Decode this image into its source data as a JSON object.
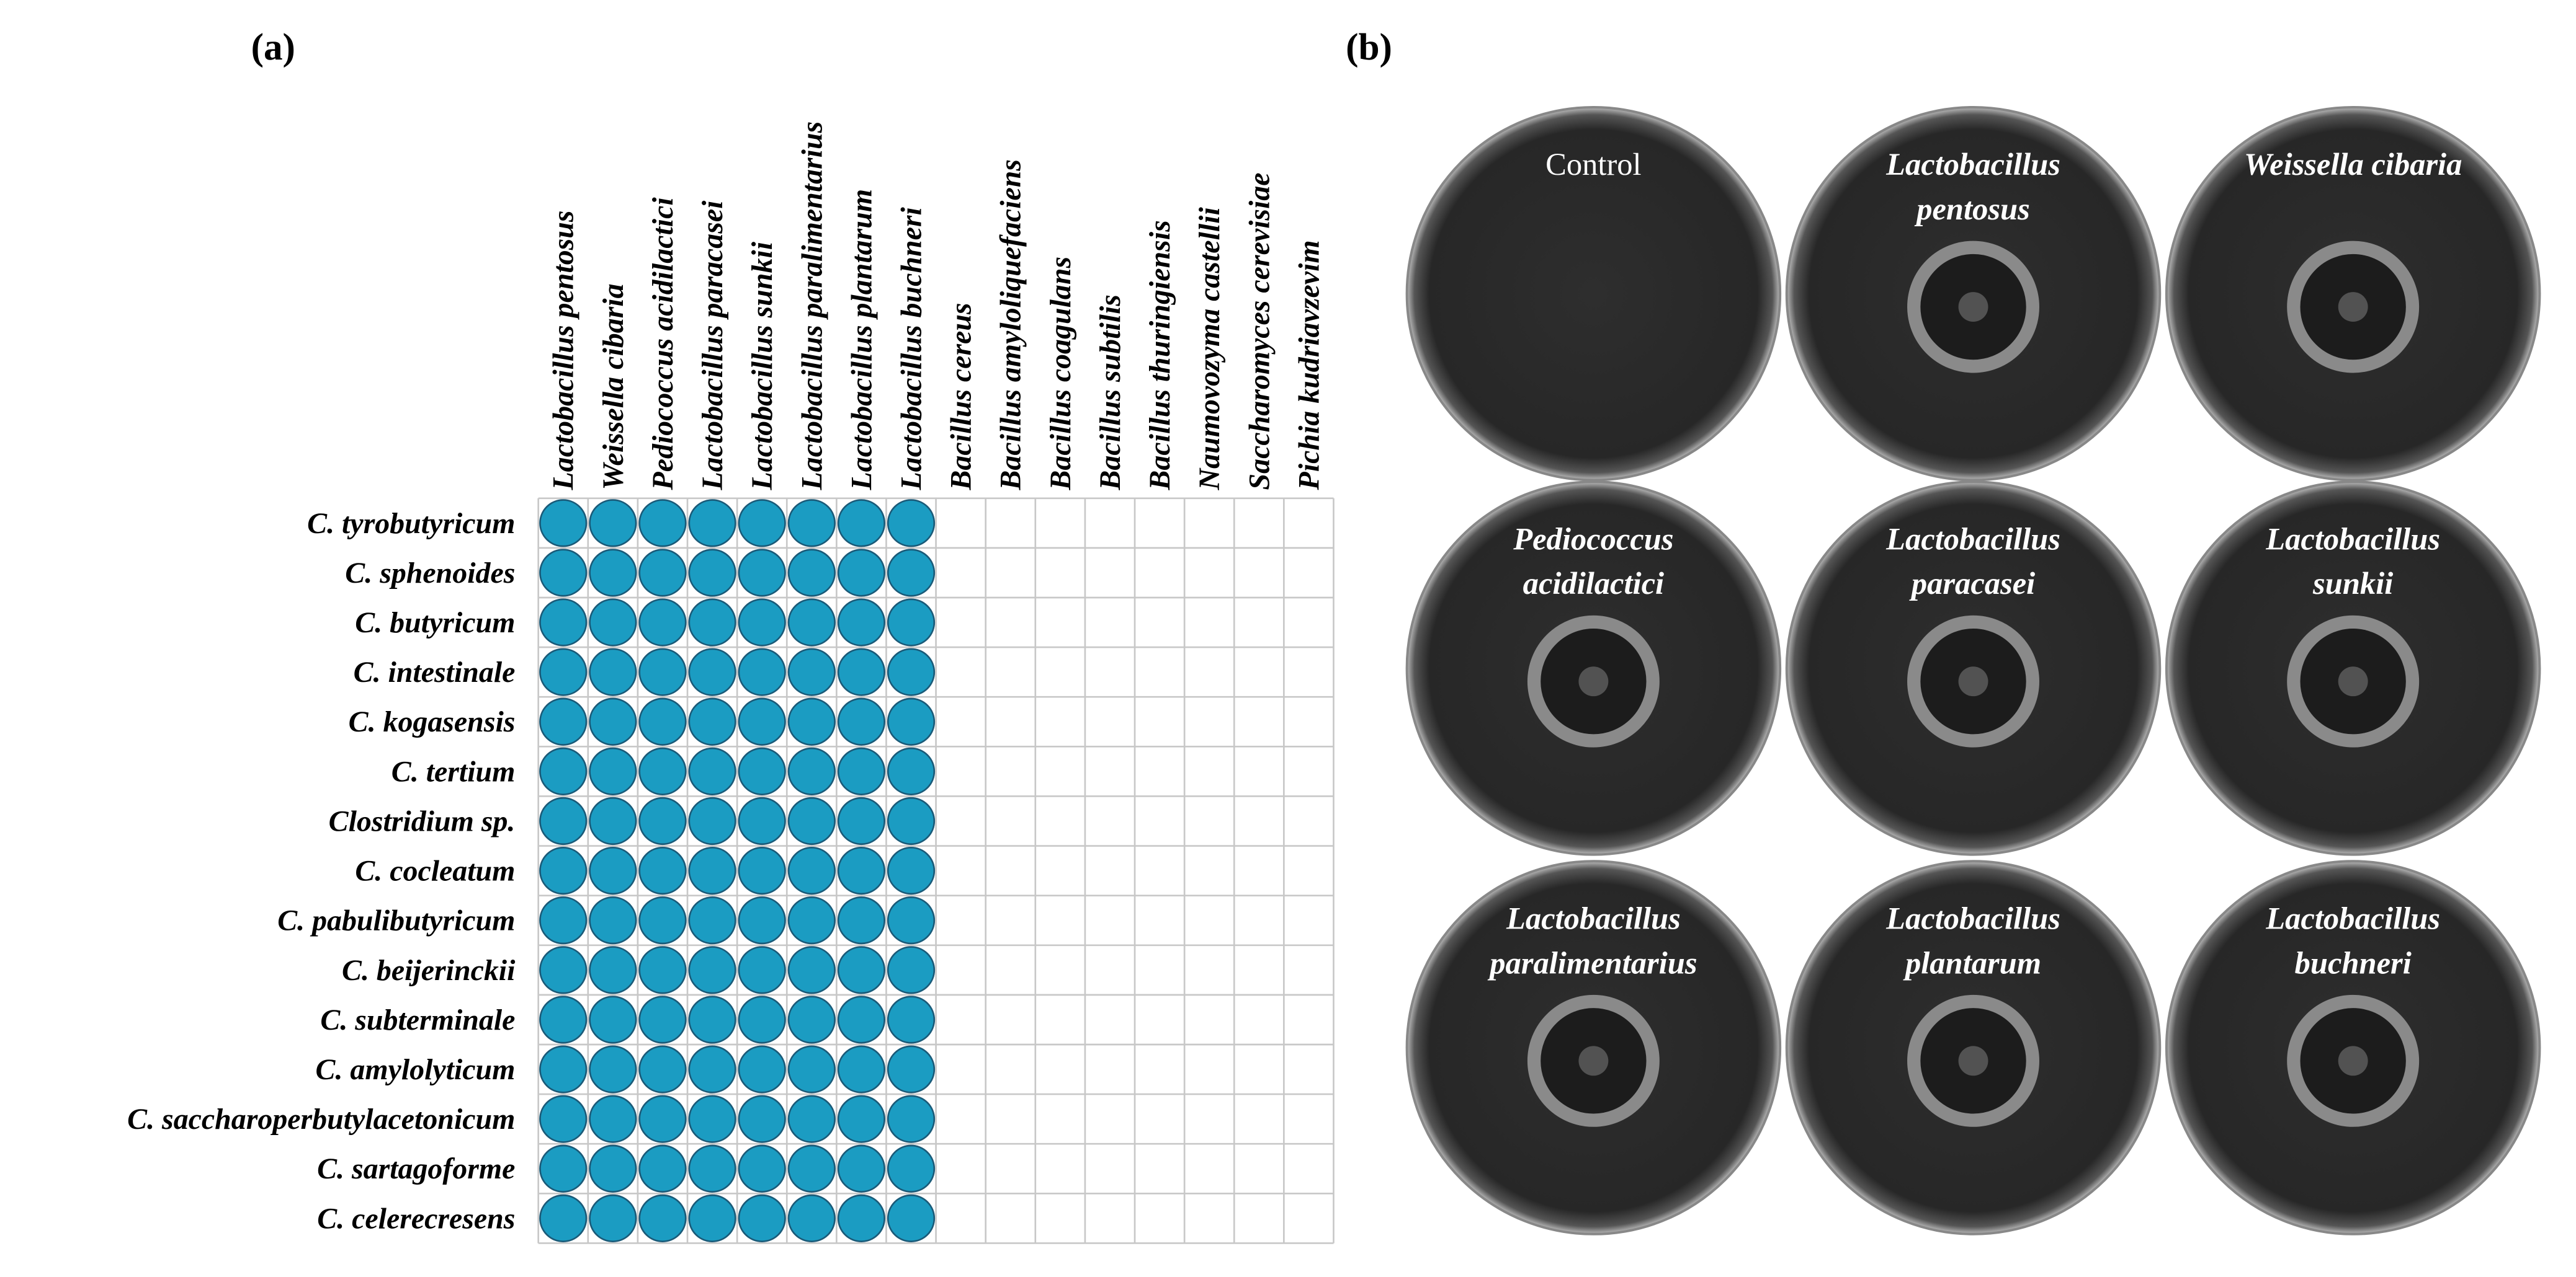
{
  "panels": {
    "a": "(a)",
    "b": "(b)"
  },
  "matrix": {
    "columns": [
      {
        "name": "Lactobacillus pentosus",
        "inhibits": true
      },
      {
        "name": "Weissella cibaria",
        "inhibits": true
      },
      {
        "name": "Pediococcus acidilactici",
        "inhibits": true
      },
      {
        "name": "Lactobacillus paracasei",
        "inhibits": true
      },
      {
        "name": "Lactobacillus sunkii",
        "inhibits": true
      },
      {
        "name": "Lactobacillus paralimentarius",
        "inhibits": true
      },
      {
        "name": "Lactobacillus plantarum",
        "inhibits": true
      },
      {
        "name": "Lactobacillus buchneri",
        "inhibits": true
      },
      {
        "name": "Bacillus cereus",
        "inhibits": false
      },
      {
        "name": "Bacillus amyloliquefaciens",
        "inhibits": false
      },
      {
        "name": "Bacillus coagulans",
        "inhibits": false
      },
      {
        "name": "Bacillus subtilis",
        "inhibits": false
      },
      {
        "name": "Bacillus thuringiensis",
        "inhibits": false
      },
      {
        "name": "Naumovozyma castellii",
        "inhibits": false
      },
      {
        "name": "Saccharomyces cerevisiae",
        "inhibits": false
      },
      {
        "name": "Pichia kudriavzevim",
        "inhibits": false
      }
    ],
    "rows": [
      "C. tyrobutyricum",
      "C. sphenoides",
      "C. butyricum",
      "C. intestinale",
      "C. kogasensis",
      "C. tertium",
      "Clostridium sp.",
      "C. cocleatum",
      "C. pabulibutyricum",
      "C. beijerinckii",
      "C. subterminale",
      "C. amylolyticum",
      "C. saccharoperbutylacetonicum",
      "C. sartagoforme",
      "C. celerecresens"
    ],
    "dot_color": "#1b9cc2"
  },
  "plates": [
    {
      "label_lines": [
        "Control"
      ],
      "italic": false,
      "ring": false
    },
    {
      "label_lines": [
        "Lactobacillus",
        "pentosus"
      ],
      "italic": true,
      "ring": true
    },
    {
      "label_lines": [
        "Weissella cibaria"
      ],
      "italic": true,
      "ring": true
    },
    {
      "label_lines": [
        "Pediococcus",
        "acidilactici"
      ],
      "italic": true,
      "ring": true
    },
    {
      "label_lines": [
        "Lactobacillus",
        "paracasei"
      ],
      "italic": true,
      "ring": true
    },
    {
      "label_lines": [
        "Lactobacillus",
        "sunkii"
      ],
      "italic": true,
      "ring": true
    },
    {
      "label_lines": [
        "Lactobacillus",
        "paralimentarius"
      ],
      "italic": true,
      "ring": true
    },
    {
      "label_lines": [
        "Lactobacillus",
        "plantarum"
      ],
      "italic": true,
      "ring": true
    },
    {
      "label_lines": [
        "Lactobacillus",
        "buchneri"
      ],
      "italic": true,
      "ring": true
    }
  ]
}
